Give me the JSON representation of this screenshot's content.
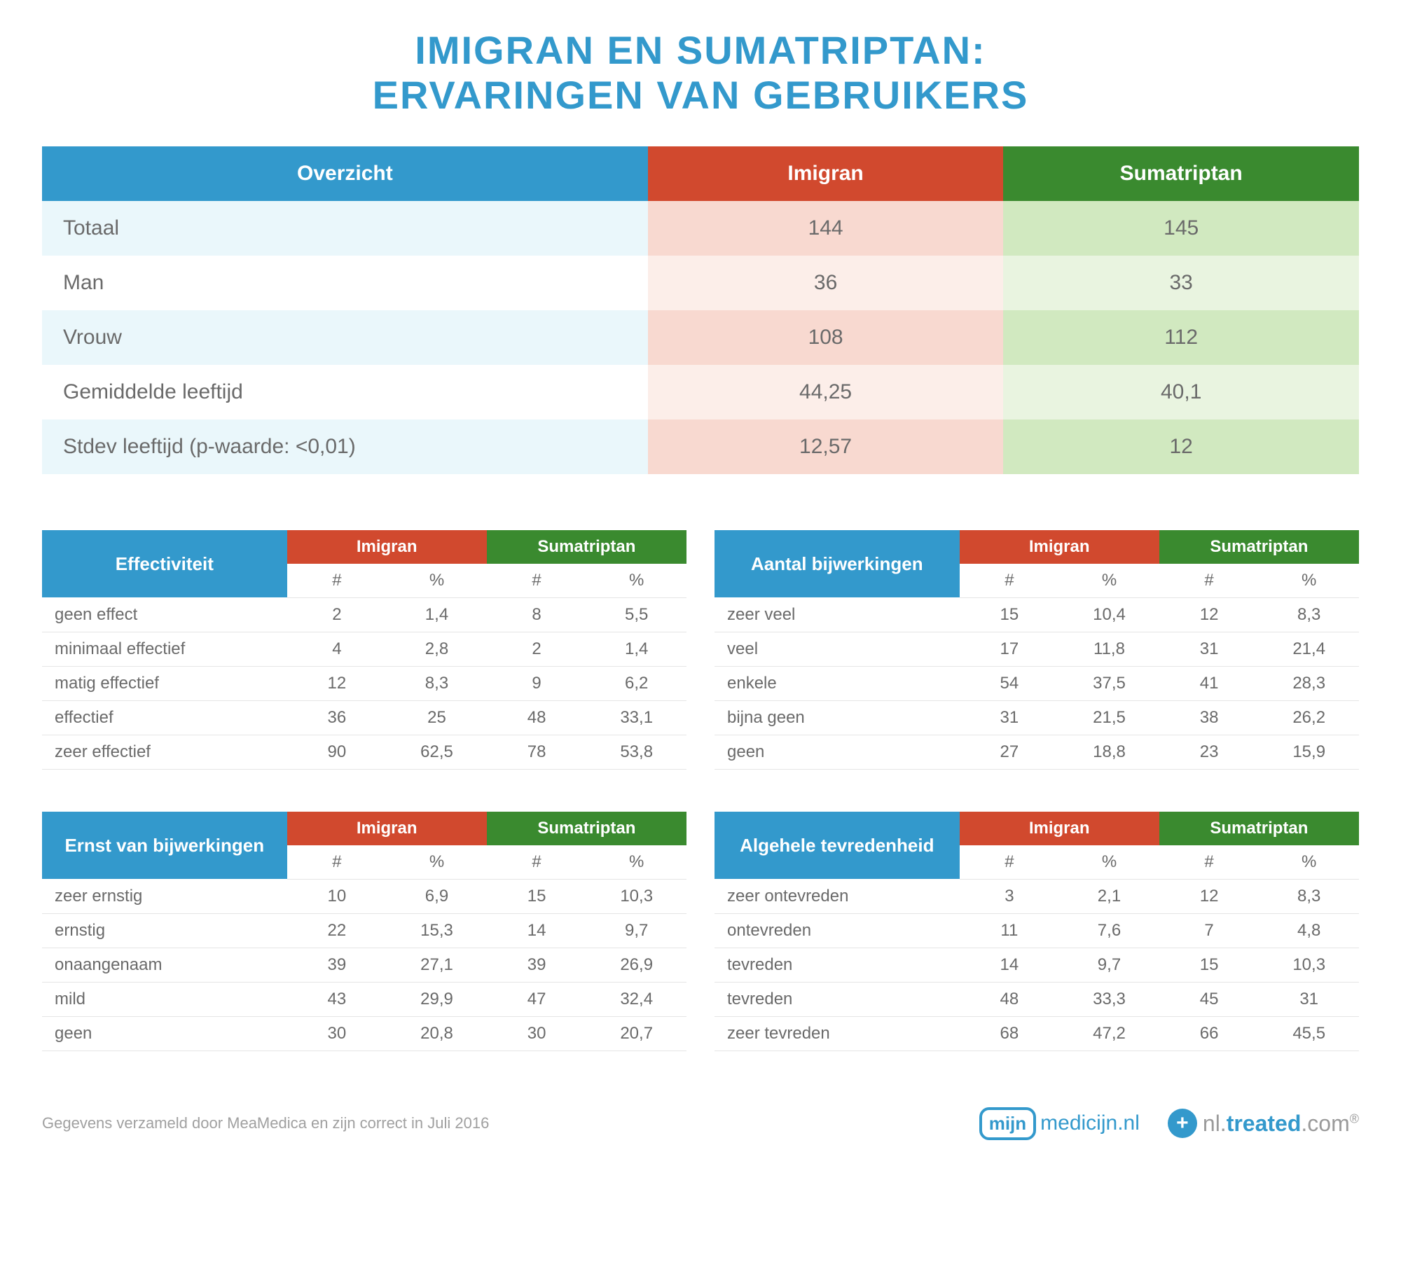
{
  "title_line1": "IMIGRAN EN SUMATRIPTAN:",
  "title_line2": "ERVARINGEN VAN GEBRUIKERS",
  "colors": {
    "brand_blue": "#3399cc",
    "orange": "#d1492e",
    "green": "#3a8a2f",
    "orange_light_odd": "#f8d9d0",
    "orange_light_even": "#fceee9",
    "green_light_odd": "#d1e9c0",
    "green_light_even": "#e9f4e0",
    "blue_light": "#eaf7fb",
    "text_grey": "#6a6a6a",
    "foot_grey": "#a0a0a0",
    "border": "#e5e5e5",
    "background": "#ffffff"
  },
  "overview": {
    "header_cat": "Overzicht",
    "header_a": "Imigran",
    "header_b": "Sumatriptan",
    "rows": [
      {
        "label": "Totaal",
        "a": "144",
        "b": "145"
      },
      {
        "label": "Man",
        "a": "36",
        "b": "33"
      },
      {
        "label": "Vrouw",
        "a": "108",
        "b": "112"
      },
      {
        "label": "Gemiddelde leeftijd",
        "a": "44,25",
        "b": "40,1"
      },
      {
        "label": "Stdev leeftijd (p-waarde: <0,01)",
        "a": "12,57",
        "b": "12"
      }
    ]
  },
  "sub_headers": {
    "count": "#",
    "percent": "%"
  },
  "drug_a": "Imigran",
  "drug_b": "Sumatriptan",
  "tables": {
    "effectiviteit": {
      "title": "Effectiviteit",
      "rows": [
        {
          "label": "geen effect",
          "a_n": "2",
          "a_p": "1,4",
          "b_n": "8",
          "b_p": "5,5"
        },
        {
          "label": "minimaal effectief",
          "a_n": "4",
          "a_p": "2,8",
          "b_n": "2",
          "b_p": "1,4"
        },
        {
          "label": "matig effectief",
          "a_n": "12",
          "a_p": "8,3",
          "b_n": "9",
          "b_p": "6,2"
        },
        {
          "label": "effectief",
          "a_n": "36",
          "a_p": "25",
          "b_n": "48",
          "b_p": "33,1"
        },
        {
          "label": "zeer effectief",
          "a_n": "90",
          "a_p": "62,5",
          "b_n": "78",
          "b_p": "53,8"
        }
      ]
    },
    "bijwerkingen_aantal": {
      "title": "Aantal bijwerkingen",
      "rows": [
        {
          "label": "zeer veel",
          "a_n": "15",
          "a_p": "10,4",
          "b_n": "12",
          "b_p": "8,3"
        },
        {
          "label": "veel",
          "a_n": "17",
          "a_p": "11,8",
          "b_n": "31",
          "b_p": "21,4"
        },
        {
          "label": "enkele",
          "a_n": "54",
          "a_p": "37,5",
          "b_n": "41",
          "b_p": "28,3"
        },
        {
          "label": "bijna geen",
          "a_n": "31",
          "a_p": "21,5",
          "b_n": "38",
          "b_p": "26,2"
        },
        {
          "label": "geen",
          "a_n": "27",
          "a_p": "18,8",
          "b_n": "23",
          "b_p": "15,9"
        }
      ]
    },
    "bijwerkingen_ernst": {
      "title": "Ernst van bijwerkingen",
      "rows": [
        {
          "label": "zeer ernstig",
          "a_n": "10",
          "a_p": "6,9",
          "b_n": "15",
          "b_p": "10,3"
        },
        {
          "label": "ernstig",
          "a_n": "22",
          "a_p": "15,3",
          "b_n": "14",
          "b_p": "9,7"
        },
        {
          "label": "onaangenaam",
          "a_n": "39",
          "a_p": "27,1",
          "b_n": "39",
          "b_p": "26,9"
        },
        {
          "label": "mild",
          "a_n": "43",
          "a_p": "29,9",
          "b_n": "47",
          "b_p": "32,4"
        },
        {
          "label": "geen",
          "a_n": "30",
          "a_p": "20,8",
          "b_n": "30",
          "b_p": "20,7"
        }
      ]
    },
    "tevredenheid": {
      "title": "Algehele tevredenheid",
      "rows": [
        {
          "label": "zeer ontevreden",
          "a_n": "3",
          "a_p": "2,1",
          "b_n": "12",
          "b_p": "8,3"
        },
        {
          "label": "ontevreden",
          "a_n": "11",
          "a_p": "7,6",
          "b_n": "7",
          "b_p": "4,8"
        },
        {
          "label": "tevreden",
          "a_n": "14",
          "a_p": "9,7",
          "b_n": "15",
          "b_p": "10,3"
        },
        {
          "label": "tevreden",
          "a_n": "48",
          "a_p": "33,3",
          "b_n": "45",
          "b_p": "31"
        },
        {
          "label": "zeer tevreden",
          "a_n": "68",
          "a_p": "47,2",
          "b_n": "66",
          "b_p": "45,5"
        }
      ]
    }
  },
  "footnote": "Gegevens verzameld door MeaMedica en zijn correct in Juli 2016",
  "logos": {
    "mijn_box": "mijn",
    "mijn_rest": "medicijn.nl",
    "treated_prefix": "nl.",
    "treated_main": "treated",
    "treated_suffix": ".com",
    "treated_reg": "®"
  },
  "typography": {
    "title_fontsize": 56,
    "overview_fontsize": 30,
    "small_fontsize": 24,
    "footnote_fontsize": 22
  }
}
